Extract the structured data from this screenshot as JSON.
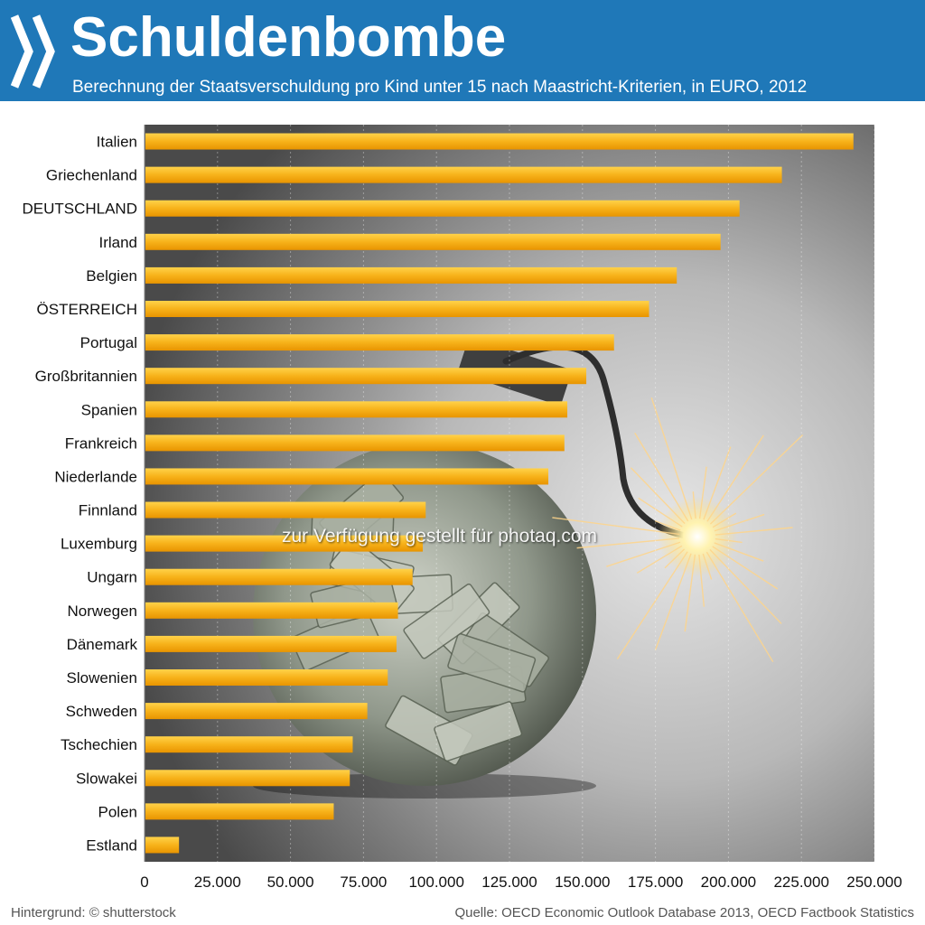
{
  "header": {
    "title": "Schuldenbombe",
    "subtitle": "Berechnung der Staatsverschuldung pro Kind unter 15 nach Maastricht-Kriterien, in EURO, 2012",
    "background_color": "#1f78b8"
  },
  "footer": {
    "left": "Hintergrund: © shutterstock",
    "right": "Quelle: OECD Economic Outlook Database 2013, OECD Factbook Statistics"
  },
  "watermark": "zur Verfügung gestellt für photaq.com",
  "chart_data": {
    "type": "bar",
    "orientation": "horizontal",
    "categories": [
      "Italien",
      "Griechenland",
      "DEUTSCHLAND",
      "Irland",
      "Belgien",
      "ÖSTERREICH",
      "Portugal",
      "Großbritannien",
      "Spanien",
      "Frankreich",
      "Niederlande",
      "Finnland",
      "Luxemburg",
      "Ungarn",
      "Norwegen",
      "Dänemark",
      "Slowenien",
      "Schweden",
      "Tschechien",
      "Slowakei",
      "Polen",
      "Estland"
    ],
    "values": [
      242500,
      218000,
      203500,
      197000,
      182000,
      172500,
      160500,
      151000,
      144500,
      143500,
      138000,
      96000,
      95000,
      91500,
      86500,
      86000,
      83000,
      76000,
      71000,
      70000,
      64500,
      11500
    ],
    "xlim": [
      0,
      250000
    ],
    "xticks": [
      0,
      25000,
      50000,
      75000,
      100000,
      125000,
      150000,
      175000,
      200000,
      225000,
      250000
    ],
    "xtick_labels": [
      "0",
      "25.000",
      "50.000",
      "75.000",
      "100.000",
      "125.000",
      "150.000",
      "175.000",
      "200.000",
      "225.000",
      "250.000"
    ],
    "grid": true,
    "bar_color": "#f5a800",
    "bar_highlight": "#ffd24a"
  }
}
